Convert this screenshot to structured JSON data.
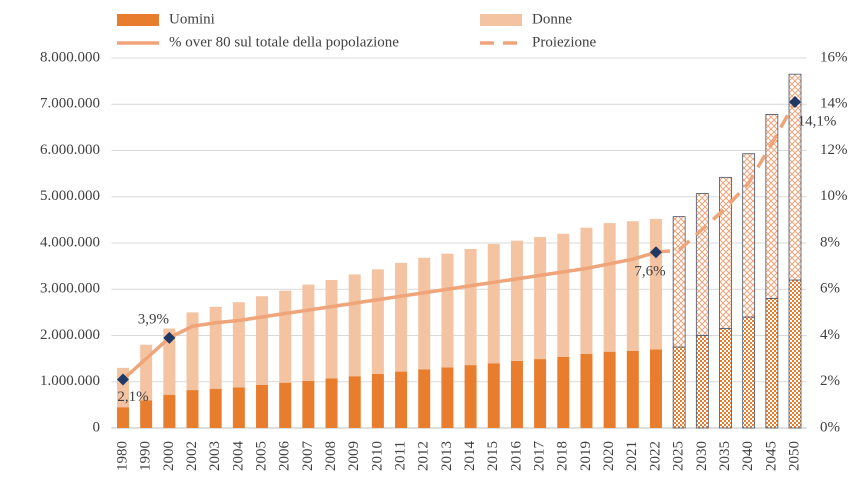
{
  "chart_data": {
    "type": "bar_line",
    "categories": [
      "1980",
      "1990",
      "2000",
      "2002",
      "2003",
      "2004",
      "2005",
      "2006",
      "2007",
      "2008",
      "2009",
      "2010",
      "2011",
      "2012",
      "2013",
      "2014",
      "2015",
      "2016",
      "2017",
      "2018",
      "2019",
      "2020",
      "2021",
      "2022",
      "2025",
      "2030",
      "2035",
      "2040",
      "2045",
      "2050"
    ],
    "series": [
      {
        "name": "Uomini",
        "color": "#e87d2d",
        "stack": true,
        "values": [
          450000,
          600000,
          720000,
          820000,
          850000,
          880000,
          930000,
          980000,
          1020000,
          1070000,
          1120000,
          1170000,
          1220000,
          1270000,
          1310000,
          1360000,
          1400000,
          1450000,
          1490000,
          1540000,
          1600000,
          1650000,
          1670000,
          1700000,
          1750000,
          2000000,
          2150000,
          2400000,
          2800000,
          3200000
        ]
      },
      {
        "name": "Donne",
        "color": "#f4c3a2",
        "stack": true,
        "values": [
          850000,
          1200000,
          1430000,
          1680000,
          1770000,
          1840000,
          1920000,
          1990000,
          2080000,
          2130000,
          2200000,
          2260000,
          2350000,
          2410000,
          2460000,
          2510000,
          2580000,
          2600000,
          2640000,
          2660000,
          2730000,
          2780000,
          2800000,
          2820000,
          2820000,
          3070000,
          3270000,
          3530000,
          3980000,
          4450000
        ]
      },
      {
        "name": "% over 80 sul totale della popolazione",
        "color": "#f0a47a",
        "axis": "y2",
        "values": [
          2.1,
          3.0,
          3.9,
          4.4,
          4.55,
          4.65,
          4.8,
          4.95,
          5.1,
          5.25,
          5.4,
          5.55,
          5.7,
          5.85,
          6.0,
          6.15,
          6.3,
          6.45,
          6.6,
          6.75,
          6.9,
          7.1,
          7.3,
          7.6,
          null,
          null,
          null,
          null,
          null,
          null
        ],
        "value_labels": [
          "2,1%",
          null,
          "3,9%",
          null,
          null,
          null,
          null,
          null,
          null,
          null,
          null,
          null,
          null,
          null,
          null,
          null,
          null,
          null,
          null,
          null,
          null,
          null,
          null,
          "7,6%",
          null,
          null,
          null,
          null,
          null,
          null
        ]
      },
      {
        "name": "Proiezione",
        "color": "#f0a47a",
        "axis": "y2",
        "dashed": true,
        "values": [
          null,
          null,
          null,
          null,
          null,
          null,
          null,
          null,
          null,
          null,
          null,
          null,
          null,
          null,
          null,
          null,
          null,
          null,
          null,
          null,
          null,
          null,
          null,
          7.6,
          7.7,
          8.6,
          9.5,
          10.6,
          12.3,
          14.1
        ],
        "value_labels": [
          null,
          null,
          null,
          null,
          null,
          null,
          null,
          null,
          null,
          null,
          null,
          null,
          null,
          null,
          null,
          null,
          null,
          null,
          null,
          null,
          null,
          null,
          null,
          null,
          null,
          null,
          null,
          null,
          null,
          "14,1%"
        ]
      }
    ],
    "ylim": [
      0,
      8000000
    ],
    "yticks": [
      0,
      {
        "value": 1000000,
        "label": "1.000.000"
      },
      {
        "value": 2000000,
        "label": "2.000.000"
      },
      {
        "value": 3000000,
        "label": "3.000.000"
      },
      {
        "value": 4000000,
        "label": "4.000.000"
      },
      {
        "value": 5000000,
        "label": "5.000.000"
      },
      {
        "value": 6000000,
        "label": "6.000.000"
      },
      {
        "value": 7000000,
        "label": "7.000.000"
      },
      {
        "value": 8000000,
        "label": "8.000.000"
      }
    ],
    "y2lim": [
      0,
      16
    ],
    "y2ticks": [
      {
        "value": 0,
        "label": "0%"
      },
      {
        "value": 2,
        "label": "2%"
      },
      {
        "value": 4,
        "label": "4%"
      },
      {
        "value": 6,
        "label": "6%"
      },
      {
        "value": 8,
        "label": "8%"
      },
      {
        "value": 10,
        "label": "10%"
      },
      {
        "value": 12,
        "label": "12%"
      },
      {
        "value": 14,
        "label": "14%"
      },
      {
        "value": 16,
        "label": "16%"
      }
    ],
    "grid": true
  }
}
